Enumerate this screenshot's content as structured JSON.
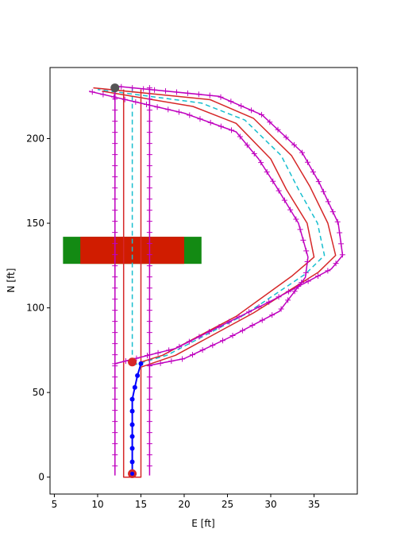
{
  "chart_data": {
    "type": "line",
    "title": "",
    "xlabel": "E [ft]",
    "ylabel": "N [ft]",
    "xlim": [
      4.5,
      40.0
    ],
    "ylim": [
      -10,
      242
    ],
    "xticks": [
      5,
      10,
      15,
      20,
      25,
      30,
      35
    ],
    "yticks": [
      0,
      50,
      100,
      150,
      200
    ],
    "grid": false,
    "legend": "none",
    "colors": {
      "centerline": "#17becf",
      "inner_boundary": "#d62728",
      "outer_boundary": "#bf00bf",
      "obstacle_core": "#d01c00",
      "obstacle_margin": "#138a13",
      "planned_path": "#0000ff",
      "start_marker": "#d62728",
      "goal_marker": "#555555"
    },
    "obstacles": [
      {
        "name": "margin",
        "x0": 6,
        "x1": 22,
        "y0": 126,
        "y1": 142
      },
      {
        "name": "core",
        "x0": 8,
        "x1": 20,
        "y0": 126,
        "y1": 142
      }
    ],
    "series": [
      {
        "role": "centerline",
        "points": [
          [
            14,
            230
          ],
          [
            14,
            66
          ],
          [
            18,
            72
          ],
          [
            27,
            96
          ],
          [
            34,
            120
          ],
          [
            36.2,
            131
          ],
          [
            35.4,
            150
          ],
          [
            33.2,
            170
          ],
          [
            31.2,
            190
          ],
          [
            27,
            211
          ],
          [
            22,
            221
          ],
          [
            10,
            229
          ]
        ]
      },
      {
        "role": "inner_boundary",
        "points": [
          [
            13,
            229
          ],
          [
            13,
            0
          ],
          [
            15,
            0
          ],
          [
            15,
            65
          ],
          [
            19,
            72
          ],
          [
            28,
            97
          ],
          [
            35.5,
            121
          ],
          [
            37.5,
            131
          ],
          [
            36.6,
            150
          ],
          [
            34.5,
            172
          ],
          [
            32.4,
            190
          ],
          [
            28,
            212
          ],
          [
            23,
            223
          ],
          [
            9.5,
            230
          ]
        ]
      },
      {
        "role": "inner_boundary_2",
        "points": [
          [
            15,
            229
          ],
          [
            15,
            68
          ],
          [
            17.5,
            72
          ],
          [
            26,
            95
          ],
          [
            32.5,
            119
          ],
          [
            35,
            130
          ],
          [
            34.2,
            150
          ],
          [
            31.8,
            170
          ],
          [
            30,
            188
          ],
          [
            26,
            209
          ],
          [
            21,
            219
          ],
          [
            10.5,
            228
          ]
        ]
      },
      {
        "role": "outer_left",
        "points": [
          [
            12,
            230
          ],
          [
            12,
            1
          ]
        ]
      },
      {
        "role": "outer_right",
        "points": [
          [
            16,
            230
          ],
          [
            16,
            1
          ]
        ]
      },
      {
        "role": "outer_curve",
        "points": [
          [
            12,
            67
          ],
          [
            19,
            76
          ],
          [
            30,
            104
          ],
          [
            37,
            123
          ],
          [
            38.3,
            131
          ],
          [
            37.8,
            150
          ],
          [
            35.6,
            174
          ],
          [
            33.6,
            192
          ],
          [
            29,
            214
          ],
          [
            24,
            225
          ],
          [
            12,
            231
          ]
        ]
      },
      {
        "role": "outer_curve_inner",
        "points": [
          [
            16,
            66
          ],
          [
            20,
            70
          ],
          [
            25,
            82
          ],
          [
            31,
            98
          ],
          [
            34,
            118
          ],
          [
            34.3,
            130
          ],
          [
            33.2,
            150
          ],
          [
            30.6,
            172
          ],
          [
            28.6,
            188
          ],
          [
            26,
            204
          ],
          [
            20,
            215
          ],
          [
            9,
            228
          ]
        ]
      },
      {
        "role": "planned_path",
        "points": [
          [
            14,
            2
          ],
          [
            14,
            9
          ],
          [
            14,
            17
          ],
          [
            14,
            24
          ],
          [
            14,
            31
          ],
          [
            14,
            39
          ],
          [
            14,
            46
          ],
          [
            14.3,
            53
          ],
          [
            14.6,
            60
          ],
          [
            15,
            67
          ]
        ]
      }
    ],
    "markers": [
      {
        "role": "start",
        "x": 14,
        "y": 2
      },
      {
        "role": "waypoint",
        "x": 14,
        "y": 68
      },
      {
        "role": "goal",
        "x": 12,
        "y": 230
      }
    ]
  }
}
